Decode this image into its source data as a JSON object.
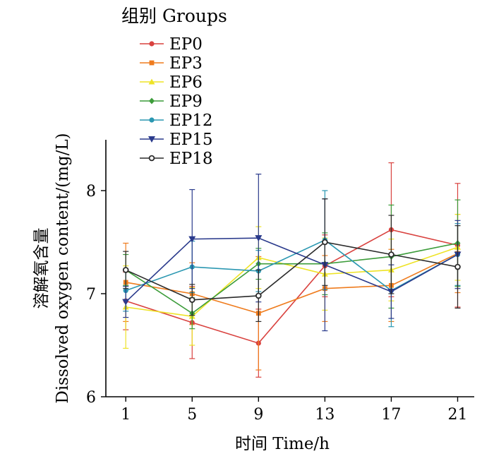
{
  "chart_data": {
    "type": "line",
    "xlabel": "时间  Time/h",
    "ylabel": "溶解氧含量 Dissolved oxygen content/(mg/L)",
    "ylabel_cn": "溶解氧含量",
    "ylabel_en": "Dissolved oxygen content/(mg/L)",
    "legend_title": "组别 Groups",
    "legend_position": "top-left",
    "x": [
      1,
      5,
      9,
      13,
      17,
      21
    ],
    "x_ticks": [
      "1",
      "5",
      "9",
      "13",
      "17",
      "21"
    ],
    "y_ticks": [
      "6",
      "7",
      "8"
    ],
    "y_tick_values": [
      6,
      7,
      8
    ],
    "ylim": [
      6,
      8.5
    ],
    "grid": false,
    "series": [
      {
        "name": "EP0",
        "color": "#d9423f",
        "marker": "circle",
        "values": [
          6.93,
          6.72,
          6.52,
          7.27,
          7.62,
          7.47
        ],
        "errors": [
          0.28,
          0.35,
          0.33,
          0.3,
          0.65,
          0.6
        ]
      },
      {
        "name": "EP3",
        "color": "#ef7c1e",
        "marker": "square",
        "values": [
          7.11,
          7.0,
          6.81,
          7.05,
          7.08,
          7.39
        ],
        "errors": [
          0.38,
          0.3,
          0.55,
          0.32,
          0.35,
          0.38
        ]
      },
      {
        "name": "EP6",
        "color": "#eee326",
        "marker": "triangle-up",
        "values": [
          6.87,
          6.78,
          7.35,
          7.19,
          7.23,
          7.45
        ],
        "errors": [
          0.4,
          0.28,
          0.3,
          0.35,
          0.3,
          0.32
        ]
      },
      {
        "name": "EP9",
        "color": "#3c9c3a",
        "marker": "diamond",
        "values": [
          7.23,
          6.81,
          7.29,
          7.29,
          7.36,
          7.49
        ],
        "errors": [
          0.15,
          0.15,
          0.15,
          0.3,
          0.5,
          0.42
        ]
      },
      {
        "name": "EP12",
        "color": "#2a97b1",
        "marker": "circle",
        "values": [
          7.03,
          7.26,
          7.22,
          7.52,
          7.03,
          7.38
        ],
        "errors": [
          0.2,
          0.25,
          0.2,
          0.48,
          0.35,
          0.3
        ]
      },
      {
        "name": "EP15",
        "color": "#2a3a8c",
        "marker": "triangle-down",
        "values": [
          6.92,
          7.53,
          7.54,
          7.28,
          7.02,
          7.38
        ],
        "errors": [
          0.15,
          0.48,
          0.62,
          0.64,
          0.26,
          0.33
        ]
      },
      {
        "name": "EP18",
        "color": "#2b2b2b",
        "marker": "open-circle",
        "values": [
          7.23,
          6.94,
          6.98,
          7.5,
          7.38,
          7.26
        ],
        "errors": [
          0.18,
          0.15,
          0.25,
          0.42,
          0.38,
          0.4
        ]
      }
    ]
  }
}
